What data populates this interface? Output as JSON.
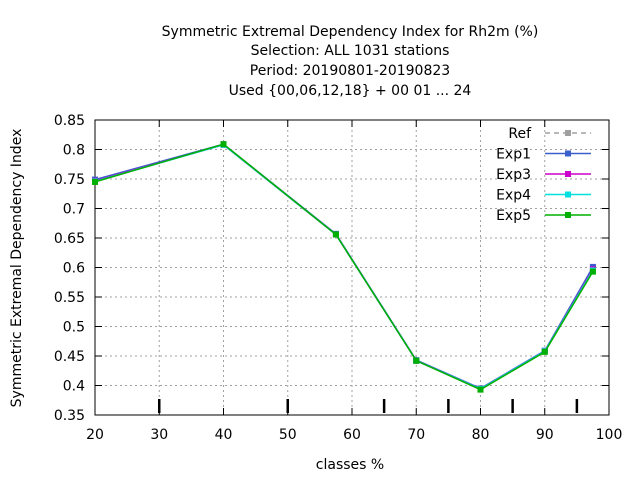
{
  "chart_data": {
    "type": "line",
    "title_lines": [
      "Symmetric Extremal Dependency Index  for Rh2m (%)",
      "Selection: ALL    1031 stations",
      "Period: 20190801-20190823",
      "Used {00,06,12,18} + 00 01 ... 24"
    ],
    "xlabel": "classes %",
    "ylabel": "Symmetric Extremal Dependency Index",
    "xlim": [
      20,
      100
    ],
    "ylim": [
      0.35,
      0.85
    ],
    "x_ticks": [
      20,
      30,
      40,
      50,
      60,
      70,
      80,
      90,
      100
    ],
    "y_ticks": [
      0.35,
      0.4,
      0.45,
      0.5,
      0.55,
      0.6,
      0.65,
      0.7,
      0.75,
      0.8,
      0.85
    ],
    "y_tick_labels": [
      "0.35",
      "0.4",
      "0.45",
      "0.5",
      "0.55",
      "0.6",
      "0.65",
      "0.7",
      "0.75",
      "0.8",
      "0.85"
    ],
    "grid": true,
    "legend_position": "top-right",
    "class_marks": [
      30,
      50,
      65,
      75,
      85,
      95
    ],
    "x": [
      20,
      40,
      57.5,
      70,
      80,
      90,
      97.5
    ],
    "series": [
      {
        "name": "Ref",
        "color": "#a0a0a0",
        "dashed": true,
        "values": [
          0.748,
          0.808,
          0.656,
          0.442,
          0.394,
          0.458,
          0.6
        ]
      },
      {
        "name": "Exp1",
        "color": "#3a5fcd",
        "dashed": false,
        "values": [
          0.749,
          0.809,
          0.657,
          0.443,
          0.395,
          0.459,
          0.601
        ]
      },
      {
        "name": "Exp3",
        "color": "#cc00cc",
        "dashed": false,
        "values": [
          0.747,
          0.808,
          0.656,
          0.442,
          0.394,
          0.458,
          0.597
        ]
      },
      {
        "name": "Exp4",
        "color": "#00e0e0",
        "dashed": false,
        "values": [
          0.746,
          0.808,
          0.656,
          0.442,
          0.394,
          0.458,
          0.595
        ]
      },
      {
        "name": "Exp5",
        "color": "#00b000",
        "dashed": false,
        "values": [
          0.745,
          0.809,
          0.656,
          0.442,
          0.393,
          0.457,
          0.593
        ]
      }
    ]
  }
}
